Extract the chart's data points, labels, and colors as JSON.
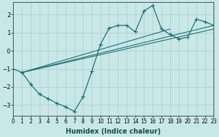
{
  "xlabel": "Humidex (Indice chaleur)",
  "xlim": [
    0,
    23
  ],
  "ylim": [
    -3.6,
    2.7
  ],
  "xticks": [
    0,
    1,
    2,
    3,
    4,
    5,
    6,
    7,
    8,
    9,
    10,
    11,
    12,
    13,
    14,
    15,
    16,
    17,
    18,
    19,
    20,
    21,
    22,
    23
  ],
  "yticks": [
    -3,
    -2,
    -1,
    0,
    1,
    2
  ],
  "bg_color": "#c8e8e8",
  "line_color": "#1a6b6b",
  "grid_color": "#a8cccc",
  "main_x": [
    0,
    1,
    2,
    3,
    4,
    5,
    6,
    7,
    8,
    9,
    10,
    11,
    12,
    13,
    14,
    15,
    16,
    17,
    18,
    19,
    20,
    21,
    22,
    23
  ],
  "main_y": [
    -1.0,
    -1.2,
    -1.85,
    -2.4,
    -2.65,
    -2.9,
    -3.1,
    -3.35,
    -2.55,
    -1.15,
    0.35,
    1.25,
    1.4,
    1.4,
    1.05,
    2.2,
    2.5,
    1.2,
    0.9,
    0.65,
    0.75,
    1.75,
    1.6,
    1.4
  ],
  "line1_x": [
    1,
    23
  ],
  "line1_y": [
    -1.2,
    1.4
  ],
  "line2_x": [
    1,
    18
  ],
  "line2_y": [
    -1.2,
    1.2
  ],
  "line3_x": [
    1,
    23
  ],
  "line3_y": [
    -1.2,
    1.2
  ],
  "marker_size": 2.8,
  "linewidth": 0.9,
  "tick_fontsize": 5.5,
  "xlabel_fontsize": 7
}
